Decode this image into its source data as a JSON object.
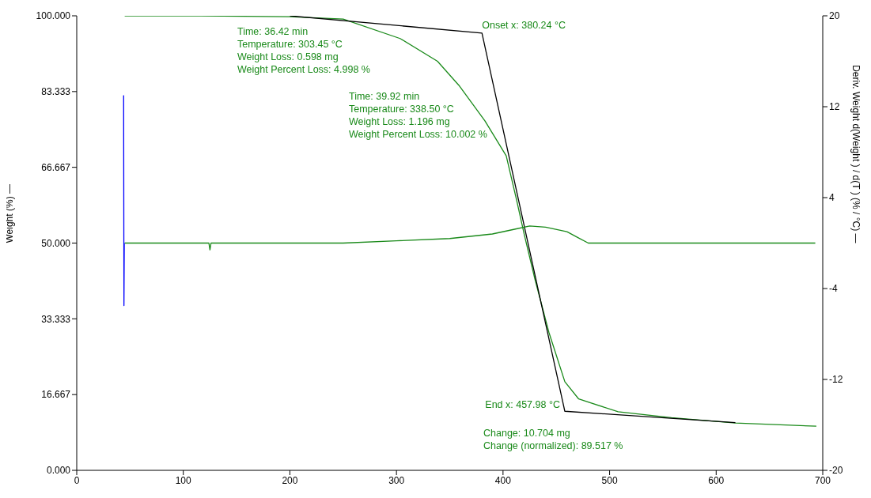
{
  "chart_data": {
    "type": "line",
    "ylabel": "Weight (%) —",
    "y2label": "Deriv. Weight d(Weight ) / d(T ) (% / °C) —",
    "xlim": [
      0,
      700
    ],
    "xticks": [
      0,
      100,
      200,
      300,
      400,
      500,
      600,
      700
    ],
    "ylim": [
      0,
      100
    ],
    "yticks": [
      {
        "value": 0,
        "label": "0.000"
      },
      {
        "value": 16.667,
        "label": "16.667"
      },
      {
        "value": 33.333,
        "label": "33.333"
      },
      {
        "value": 50,
        "label": "50.000"
      },
      {
        "value": 66.667,
        "label": "66.667"
      },
      {
        "value": 83.333,
        "label": "83.333"
      },
      {
        "value": 100,
        "label": "100.000"
      }
    ],
    "y2lim": [
      -20,
      20
    ],
    "y2ticks": [
      -20,
      -12,
      -4,
      4,
      12,
      20
    ],
    "grid": false,
    "series": [
      {
        "color": "#1a8a1a",
        "axis": "y",
        "x": [
          45,
          100,
          200,
          250,
          303.45,
          338.5,
          358.6,
          383,
          403,
          412.8,
          420,
          430,
          443,
          458,
          471,
          508,
          558,
          618,
          694
        ],
        "values": [
          100,
          100,
          99.8,
          99.3,
          95.0,
          90.0,
          84.7,
          76.9,
          69.2,
          59.4,
          51.8,
          42,
          30.4,
          19.5,
          15.7,
          12.9,
          11.6,
          10.4,
          9.7
        ]
      },
      {
        "color": "#000000",
        "axis": "y",
        "x": [
          200,
          380.24,
          457.98,
          618
        ],
        "values": [
          100,
          96.2,
          13.0,
          10.5
        ]
      },
      {
        "color": "#1a8a1a",
        "axis": "y2",
        "x": [
          45,
          124,
          125,
          126,
          250,
          300,
          350,
          390,
          410,
          425,
          440,
          460,
          470,
          480,
          693
        ],
        "values": [
          0,
          0,
          -0.6,
          0,
          0,
          0.2,
          0.4,
          0.8,
          1.2,
          1.5,
          1.4,
          1.0,
          0.5,
          0,
          0
        ]
      },
      {
        "color": "#0000ff",
        "axis": "y2",
        "x": [
          44,
          44.3,
          44.6
        ],
        "values": [
          13,
          -5.5,
          0
        ]
      }
    ],
    "annotations": [
      "Time: 36.42 min\nTemperature: 303.45 °C\nWeight Loss: 0.598 mg\nWeight Percent Loss: 4.998 %",
      "Time: 39.92 min\nTemperature: 338.50 °C\nWeight Loss: 1.196 mg\nWeight Percent Loss: 10.002 %",
      {
        "text": "Onset x: 380.24 °C",
        "x": 380.24,
        "y": 96.2
      },
      {
        "text": "End x: 457.98 °C",
        "x": 457.98,
        "y": 13.0
      },
      "Change: 10.704 mg\nChange (normalized): 89.517 %"
    ]
  }
}
